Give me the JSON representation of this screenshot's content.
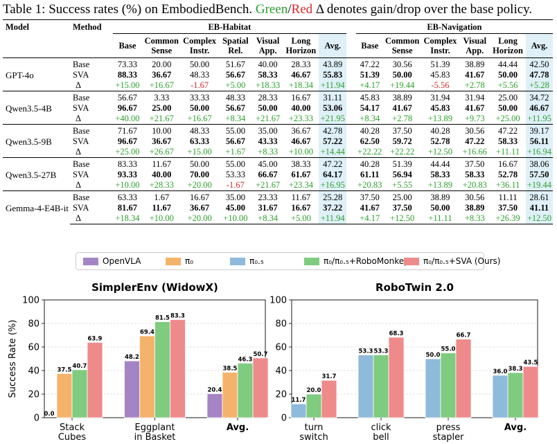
{
  "caption": {
    "prefix": "Table 1: Success rates (%) on EmbodiedBench.",
    "green_word": "Green",
    "slash": "/",
    "red_word": "Red",
    "suffix": "Δ denotes gain/drop over the base policy."
  },
  "table": {
    "col_model": "Model",
    "col_method": "Method",
    "group1": "EB-Habitat",
    "group2": "EB-Navigation",
    "hab_cols": [
      [
        "Base",
        ""
      ],
      [
        "Common",
        "Sense"
      ],
      [
        "Complex",
        "Instr."
      ],
      [
        "Spatial",
        "Rel."
      ],
      [
        "Visual",
        "App."
      ],
      [
        "Long",
        "Horizon"
      ],
      [
        "Avg.",
        ""
      ]
    ],
    "nav_cols": [
      [
        "Base",
        ""
      ],
      [
        "Common",
        "Sense"
      ],
      [
        "Complex",
        "Instr."
      ],
      [
        "Visual",
        "App."
      ],
      [
        "Long",
        "Horizon"
      ],
      [
        "Avg.",
        ""
      ]
    ],
    "models": [
      {
        "name": "GPT-4o",
        "rows": [
          {
            "method": "Base",
            "hab": [
              "73.33",
              "20.00",
              "50.00",
              "51.67",
              "40.00",
              "28.33",
              "43.89"
            ],
            "nav": [
              "47.22",
              "30.56",
              "51.39",
              "38.89",
              "44.44",
              "42.50"
            ]
          },
          {
            "method": "SVA",
            "hab": [
              "88.33",
              "36.67",
              "48.33",
              "56.67",
              "58.33",
              "46.67",
              "55.83"
            ],
            "nav": [
              "51.39",
              "50.00",
              "45.83",
              "41.67",
              "50.00",
              "47.78"
            ]
          },
          {
            "method": "Δ",
            "hab": [
              "+15.00",
              "+16.67",
              "-1.67",
              "+5.00",
              "+18.33",
              "+18.34",
              "+11.94"
            ],
            "nav": [
              "+4.17",
              "+19.44",
              "-5.56",
              "+2.78",
              "+5.56",
              "+5.28"
            ]
          }
        ]
      },
      {
        "name": "Qwen3.5-4B",
        "rows": [
          {
            "method": "Base",
            "hab": [
              "56.67",
              "3.33",
              "33.33",
              "48.33",
              "28.33",
              "16.67",
              "31.11"
            ],
            "nav": [
              "45.83",
              "38.89",
              "31.94",
              "31.94",
              "25.00",
              "34.72"
            ]
          },
          {
            "method": "SVA",
            "hab": [
              "96.67",
              "25.00",
              "50.00",
              "56.67",
              "50.00",
              "40.00",
              "53.06"
            ],
            "nav": [
              "54.17",
              "41.67",
              "45.83",
              "41.67",
              "50.00",
              "46.67"
            ]
          },
          {
            "method": "Δ",
            "hab": [
              "+40.00",
              "+21.67",
              "+16.67",
              "+8.34",
              "+21.67",
              "+23.33",
              "+21.95"
            ],
            "nav": [
              "+8.34",
              "+2.78",
              "+13.89",
              "+9.73",
              "+25.00",
              "+11.95"
            ]
          }
        ]
      },
      {
        "name": "Qwen3.5-9B",
        "rows": [
          {
            "method": "Base",
            "hab": [
              "71.67",
              "10.00",
              "48.33",
              "55.00",
              "35.00",
              "36.67",
              "42.78"
            ],
            "nav": [
              "40.28",
              "37.50",
              "40.28",
              "30.56",
              "47.22",
              "39.17"
            ]
          },
          {
            "method": "SVA",
            "hab": [
              "96.67",
              "36.67",
              "63.33",
              "56.67",
              "43.33",
              "46.67",
              "57.22"
            ],
            "nav": [
              "62.50",
              "59.72",
              "52.78",
              "47.22",
              "58.33",
              "56.11"
            ]
          },
          {
            "method": "Δ",
            "hab": [
              "+25.00",
              "+26.67",
              "+15.00",
              "+1.67",
              "+8.33",
              "+10.00",
              "+14.44"
            ],
            "nav": [
              "+22.22",
              "+22.22",
              "+12.50",
              "+16.66",
              "+11.11",
              "+16.94"
            ]
          }
        ]
      },
      {
        "name": "Qwen3.5-27B",
        "rows": [
          {
            "method": "Base",
            "hab": [
              "83.33",
              "11.67",
              "50.00",
              "55.00",
              "45.00",
              "38.33",
              "47.22"
            ],
            "nav": [
              "40.28",
              "51.39",
              "44.44",
              "37.50",
              "16.67",
              "38.06"
            ]
          },
          {
            "method": "SVA",
            "hab": [
              "93.33",
              "40.00",
              "70.00",
              "53.33",
              "66.67",
              "61.67",
              "64.17"
            ],
            "nav": [
              "61.11",
              "56.94",
              "58.33",
              "58.33",
              "52.78",
              "57.50"
            ]
          },
          {
            "method": "Δ",
            "hab": [
              "+10.00",
              "+28.33",
              "+20.00",
              "-1.67",
              "+21.67",
              "+23.34",
              "+16.95"
            ],
            "nav": [
              "+20.83",
              "+5.55",
              "+13.89",
              "+20.83",
              "+36.11",
              "+19.44"
            ]
          }
        ]
      },
      {
        "name": "Gemma-4-E4B-it",
        "rows": [
          {
            "method": "Base",
            "hab": [
              "63.33",
              "1.67",
              "16.67",
              "35.00",
              "23.33",
              "11.67",
              "25.28"
            ],
            "nav": [
              "37.50",
              "25.00",
              "38.89",
              "30.56",
              "11.11",
              "28.61"
            ]
          },
          {
            "method": "SVA",
            "hab": [
              "81.67",
              "11.67",
              "36.67",
              "45.00",
              "31.67",
              "16.67",
              "37.22"
            ],
            "nav": [
              "41.67",
              "37.50",
              "50.00",
              "38.89",
              "37.50",
              "41.11"
            ]
          },
          {
            "method": "Δ",
            "hab": [
              "+18.34",
              "+10.00",
              "+20.00",
              "+10.00",
              "+8.34",
              "+5.00",
              "+11.94"
            ],
            "nav": [
              "+4.17",
              "+12.50",
              "+11.11",
              "+8.33",
              "+26.39",
              "+12.50"
            ]
          }
        ]
      }
    ]
  },
  "legend": [
    {
      "label": "OpenVLA",
      "color": "#a584c5"
    },
    {
      "label": "π₀",
      "color": "#f5b26b"
    },
    {
      "label": "π₀.₅",
      "color": "#8ebadb"
    },
    {
      "label": "π₀/π₀.₅+RoboMonkey",
      "color": "#7fcb7f"
    },
    {
      "label": "π₀/π₀.₅+SVA (Ours)",
      "color": "#ef8a8a"
    }
  ],
  "chart_data": [
    {
      "type": "bar",
      "title": "SimplerEnv (WidowX)",
      "ylabel": "Success Rate (%)",
      "ylim": [
        0,
        100
      ],
      "yticks": [
        0,
        20,
        40,
        60,
        80,
        100
      ],
      "grid": true,
      "categories": [
        [
          "Stack",
          "Cubes"
        ],
        [
          "Eggplant",
          "in Basket"
        ],
        [
          "Avg."
        ]
      ],
      "series": [
        {
          "name": "OpenVLA",
          "color": "#a584c5",
          "values": [
            0.0,
            48.2,
            20.4
          ]
        },
        {
          "name": "π₀",
          "color": "#f5b26b",
          "values": [
            37.5,
            69.4,
            38.5
          ]
        },
        {
          "name": "π₀/π₀.₅+RoboMonkey",
          "color": "#7fcb7f",
          "values": [
            40.7,
            81.5,
            46.3
          ]
        },
        {
          "name": "π₀/π₀.₅+SVA (Ours)",
          "color": "#ef8a8a",
          "values": [
            63.9,
            83.3,
            50.7
          ]
        }
      ]
    },
    {
      "type": "bar",
      "title": "RoboTwin 2.0",
      "ylabel": "",
      "ylim": [
        0,
        100
      ],
      "yticks": [
        0,
        20,
        40,
        60,
        80,
        100
      ],
      "grid": true,
      "categories": [
        [
          "turn",
          "switch"
        ],
        [
          "click",
          "bell"
        ],
        [
          "press",
          "stapler"
        ],
        [
          "Avg."
        ]
      ],
      "series": [
        {
          "name": "π₀.₅",
          "color": "#8ebadb",
          "values": [
            11.7,
            53.3,
            50.0,
            36.0
          ]
        },
        {
          "name": "π₀/π₀.₅+RoboMonkey",
          "color": "#7fcb7f",
          "values": [
            20.0,
            53.3,
            55.0,
            38.3
          ]
        },
        {
          "name": "π₀/π₀.₅+SVA (Ours)",
          "color": "#ef8a8a",
          "values": [
            31.7,
            68.3,
            66.7,
            43.5
          ]
        }
      ]
    }
  ]
}
